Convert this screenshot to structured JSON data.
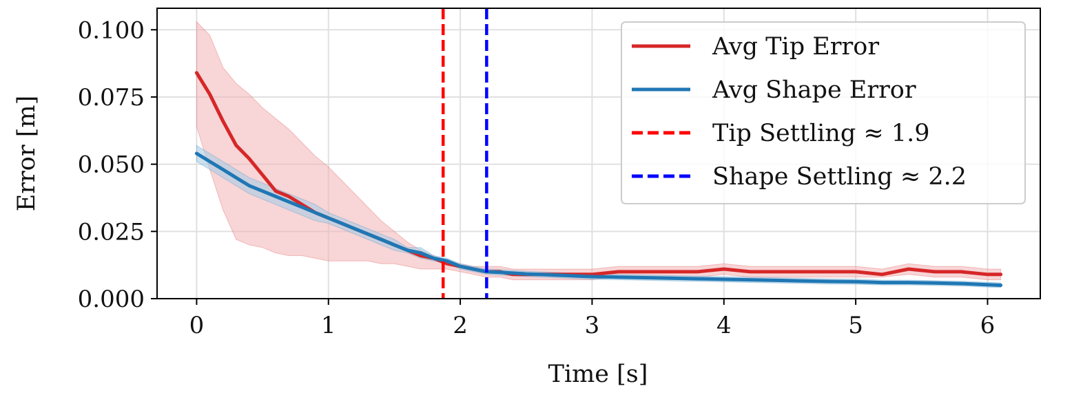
{
  "chart_data": {
    "type": "line",
    "title": "",
    "xlabel": "Time [s]",
    "ylabel": "Error [m]",
    "xlim": [
      -0.3,
      6.4
    ],
    "ylim": [
      0.0,
      0.108
    ],
    "xticks": [
      0,
      1,
      2,
      3,
      4,
      5,
      6
    ],
    "xtick_labels": [
      "0",
      "1",
      "2",
      "3",
      "4",
      "5",
      "6"
    ],
    "yticks": [
      0.0,
      0.025,
      0.05,
      0.075,
      0.1
    ],
    "ytick_labels": [
      "0.000",
      "0.025",
      "0.050",
      "0.075",
      "0.100"
    ],
    "grid": true,
    "legend_position": "top-right",
    "colors": {
      "tip": "#d62728",
      "shape": "#1f77b4",
      "tip_band": "#f3b3b5",
      "shape_band": "#a9cde6",
      "tip_settle": "#ff0000",
      "shape_settle": "#0000ff",
      "grid": "#e0e0e0",
      "axes": "#000000"
    },
    "series": [
      {
        "name": "Avg Tip Error",
        "x": [
          0.0,
          0.1,
          0.2,
          0.3,
          0.4,
          0.5,
          0.6,
          0.7,
          0.8,
          0.9,
          1.0,
          1.1,
          1.2,
          1.3,
          1.4,
          1.5,
          1.6,
          1.7,
          1.8,
          1.9,
          2.0,
          2.1,
          2.2,
          2.3,
          2.4,
          2.5,
          2.6,
          2.7,
          2.8,
          2.9,
          3.0,
          3.2,
          3.4,
          3.6,
          3.8,
          4.0,
          4.2,
          4.4,
          4.6,
          4.8,
          5.0,
          5.2,
          5.4,
          5.6,
          5.8,
          6.0,
          6.1
        ],
        "mean": [
          0.084,
          0.076,
          0.066,
          0.057,
          0.052,
          0.046,
          0.04,
          0.038,
          0.035,
          0.032,
          0.03,
          0.028,
          0.026,
          0.024,
          0.022,
          0.02,
          0.018,
          0.016,
          0.015,
          0.013,
          0.012,
          0.011,
          0.01,
          0.01,
          0.009,
          0.009,
          0.009,
          0.009,
          0.009,
          0.009,
          0.009,
          0.01,
          0.01,
          0.01,
          0.01,
          0.011,
          0.01,
          0.01,
          0.01,
          0.01,
          0.01,
          0.009,
          0.011,
          0.01,
          0.01,
          0.009,
          0.009
        ],
        "lower": [
          0.064,
          0.048,
          0.033,
          0.022,
          0.02,
          0.019,
          0.017,
          0.016,
          0.016,
          0.015,
          0.014,
          0.014,
          0.014,
          0.014,
          0.013,
          0.013,
          0.012,
          0.011,
          0.011,
          0.011,
          0.01,
          0.009,
          0.008,
          0.008,
          0.007,
          0.007,
          0.007,
          0.007,
          0.007,
          0.007,
          0.007,
          0.008,
          0.008,
          0.008,
          0.008,
          0.009,
          0.008,
          0.008,
          0.008,
          0.008,
          0.008,
          0.008,
          0.009,
          0.008,
          0.008,
          0.007,
          0.007
        ],
        "upper": [
          0.103,
          0.098,
          0.086,
          0.08,
          0.076,
          0.071,
          0.067,
          0.063,
          0.058,
          0.053,
          0.049,
          0.044,
          0.039,
          0.034,
          0.029,
          0.025,
          0.021,
          0.018,
          0.016,
          0.014,
          0.013,
          0.012,
          0.012,
          0.012,
          0.011,
          0.011,
          0.011,
          0.011,
          0.011,
          0.011,
          0.011,
          0.012,
          0.012,
          0.012,
          0.012,
          0.013,
          0.012,
          0.012,
          0.012,
          0.012,
          0.012,
          0.011,
          0.013,
          0.012,
          0.012,
          0.011,
          0.011
        ]
      },
      {
        "name": "Avg Shape Error",
        "x": [
          0.0,
          0.1,
          0.2,
          0.3,
          0.4,
          0.5,
          0.6,
          0.7,
          0.8,
          0.9,
          1.0,
          1.1,
          1.2,
          1.3,
          1.4,
          1.5,
          1.6,
          1.7,
          1.8,
          1.9,
          2.0,
          2.1,
          2.2,
          2.3,
          2.4,
          2.5,
          2.6,
          2.7,
          2.8,
          2.9,
          3.0,
          3.2,
          3.4,
          3.6,
          3.8,
          4.0,
          4.2,
          4.4,
          4.6,
          4.8,
          5.0,
          5.2,
          5.4,
          5.6,
          5.8,
          6.0,
          6.1
        ],
        "mean": [
          0.054,
          0.051,
          0.048,
          0.045,
          0.042,
          0.04,
          0.038,
          0.036,
          0.034,
          0.032,
          0.03,
          0.028,
          0.026,
          0.024,
          0.022,
          0.02,
          0.018,
          0.017,
          0.015,
          0.014,
          0.012,
          0.011,
          0.01,
          0.0098,
          0.0095,
          0.0092,
          0.009,
          0.0088,
          0.0086,
          0.0084,
          0.0082,
          0.008,
          0.0078,
          0.0076,
          0.0074,
          0.0072,
          0.007,
          0.0068,
          0.0066,
          0.0064,
          0.0063,
          0.006,
          0.006,
          0.0058,
          0.0056,
          0.0052,
          0.005
        ],
        "lower": [
          0.051,
          0.048,
          0.045,
          0.042,
          0.039,
          0.037,
          0.035,
          0.033,
          0.031,
          0.029,
          0.028,
          0.026,
          0.024,
          0.022,
          0.02,
          0.018,
          0.017,
          0.015,
          0.014,
          0.013,
          0.011,
          0.01,
          0.009,
          0.0088,
          0.0085,
          0.0082,
          0.008,
          0.0078,
          0.0076,
          0.0074,
          0.0072,
          0.007,
          0.0068,
          0.0066,
          0.0064,
          0.0062,
          0.006,
          0.0058,
          0.0056,
          0.0054,
          0.0053,
          0.0051,
          0.0051,
          0.0049,
          0.0047,
          0.0043,
          0.0041
        ],
        "upper": [
          0.057,
          0.054,
          0.051,
          0.048,
          0.045,
          0.043,
          0.041,
          0.039,
          0.037,
          0.035,
          0.032,
          0.03,
          0.028,
          0.026,
          0.024,
          0.022,
          0.019,
          0.019,
          0.016,
          0.015,
          0.013,
          0.012,
          0.011,
          0.0108,
          0.0105,
          0.0102,
          0.01,
          0.0098,
          0.0096,
          0.0094,
          0.0092,
          0.009,
          0.0088,
          0.0086,
          0.0084,
          0.0082,
          0.008,
          0.0078,
          0.0076,
          0.0074,
          0.0073,
          0.0069,
          0.0069,
          0.0067,
          0.0065,
          0.0061,
          0.0059
        ]
      }
    ],
    "vlines": [
      {
        "name": "Tip Settling ≈ 1.9",
        "x": 1.87,
        "color_key": "tip_settle"
      },
      {
        "name": "Shape Settling ≈ 2.2",
        "x": 2.2,
        "color_key": "shape_settle"
      }
    ],
    "legend": [
      {
        "label": "Avg Tip Error",
        "color_key": "tip",
        "style": "solid"
      },
      {
        "label": "Avg Shape Error",
        "color_key": "shape",
        "style": "solid"
      },
      {
        "label": "Tip Settling ≈ 1.9",
        "color_key": "tip_settle",
        "style": "dashed"
      },
      {
        "label": "Shape Settling ≈ 2.2",
        "color_key": "shape_settle",
        "style": "dashed"
      }
    ]
  }
}
